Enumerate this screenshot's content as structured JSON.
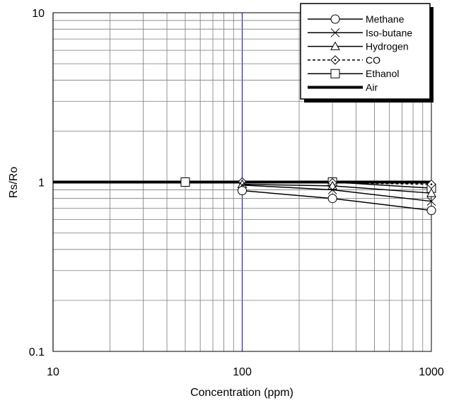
{
  "chart_data": {
    "type": "line",
    "xlabel": "Concentration (ppm)",
    "ylabel": "Rs/Ro",
    "x_scale": "log",
    "y_scale": "log",
    "xlim": [
      10,
      1000
    ],
    "ylim": [
      0.1,
      10
    ],
    "x_ticks": [
      "10",
      "100",
      "1000"
    ],
    "y_ticks": [
      "0.1",
      "1",
      "10"
    ],
    "grid": true,
    "legend_position": "top-right",
    "series": [
      {
        "name": "Methane",
        "marker": "circle",
        "style": "solid",
        "x": [
          100,
          300,
          1000
        ],
        "y": [
          0.89,
          0.8,
          0.68
        ]
      },
      {
        "name": "Iso-butane",
        "marker": "x",
        "style": "solid",
        "x": [
          100,
          300,
          1000
        ],
        "y": [
          0.96,
          0.9,
          0.77
        ]
      },
      {
        "name": "Hydrogen",
        "marker": "triangle",
        "style": "solid",
        "x": [
          100,
          300,
          1000
        ],
        "y": [
          0.97,
          0.95,
          0.86
        ]
      },
      {
        "name": "CO",
        "marker": "diamond",
        "style": "dashed",
        "x": [
          100,
          300,
          1000
        ],
        "y": [
          1.0,
          0.99,
          0.97
        ]
      },
      {
        "name": "Ethanol",
        "marker": "square",
        "style": "solid",
        "x": [
          50,
          300,
          1000
        ],
        "y": [
          1.0,
          1.0,
          0.92
        ]
      },
      {
        "name": "Air",
        "marker": "none",
        "style": "thick",
        "x": [
          10,
          1000
        ],
        "y": [
          1.0,
          1.0
        ]
      }
    ]
  }
}
